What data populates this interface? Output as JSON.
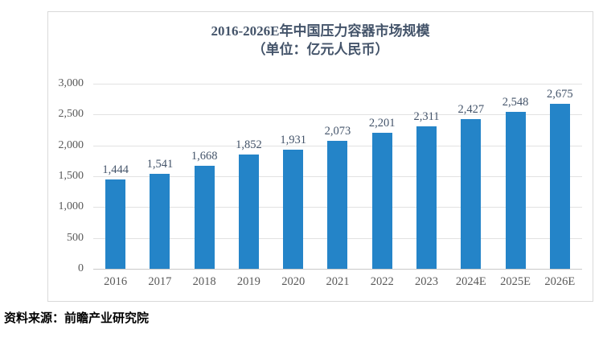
{
  "title": {
    "line1": "2016-2026E年中国压力容器市场规模",
    "line2": "（单位：亿元人民币）"
  },
  "source": "资料来源：前瞻产业研究院",
  "colors": {
    "bar": "#2484c8",
    "grid": "#e2e2e2",
    "axis": "#c9c9c9",
    "frame_border": "#d9d9d9",
    "title_text": "#44546a",
    "label_text": "#44546a",
    "tick_text": "#595959"
  },
  "chart_data": {
    "type": "bar",
    "title": "2016-2026E年中国压力容器市场规模（单位：亿元人民币）",
    "categories": [
      "2016",
      "2017",
      "2018",
      "2019",
      "2020",
      "2021",
      "2022",
      "2023",
      "2024E",
      "2025E",
      "2026E"
    ],
    "values": [
      1444,
      1541,
      1668,
      1852,
      1931,
      2073,
      2201,
      2311,
      2427,
      2548,
      2675
    ],
    "value_labels": [
      "1,444",
      "1,541",
      "1,668",
      "1,852",
      "1,931",
      "2,073",
      "2,201",
      "2,311",
      "2,427",
      "2,548",
      "2,675"
    ],
    "y_ticks": [
      {
        "value": 0,
        "label": "0"
      },
      {
        "value": 500,
        "label": "500"
      },
      {
        "value": 1000,
        "label": "1,000"
      },
      {
        "value": 1500,
        "label": "1,500"
      },
      {
        "value": 2000,
        "label": "2,000"
      },
      {
        "value": 2500,
        "label": "2,500"
      },
      {
        "value": 3000,
        "label": "3,000"
      }
    ],
    "ylim": [
      0,
      3000
    ],
    "xlabel": "",
    "ylabel": "",
    "grid": "horizontal",
    "legend": "none"
  }
}
